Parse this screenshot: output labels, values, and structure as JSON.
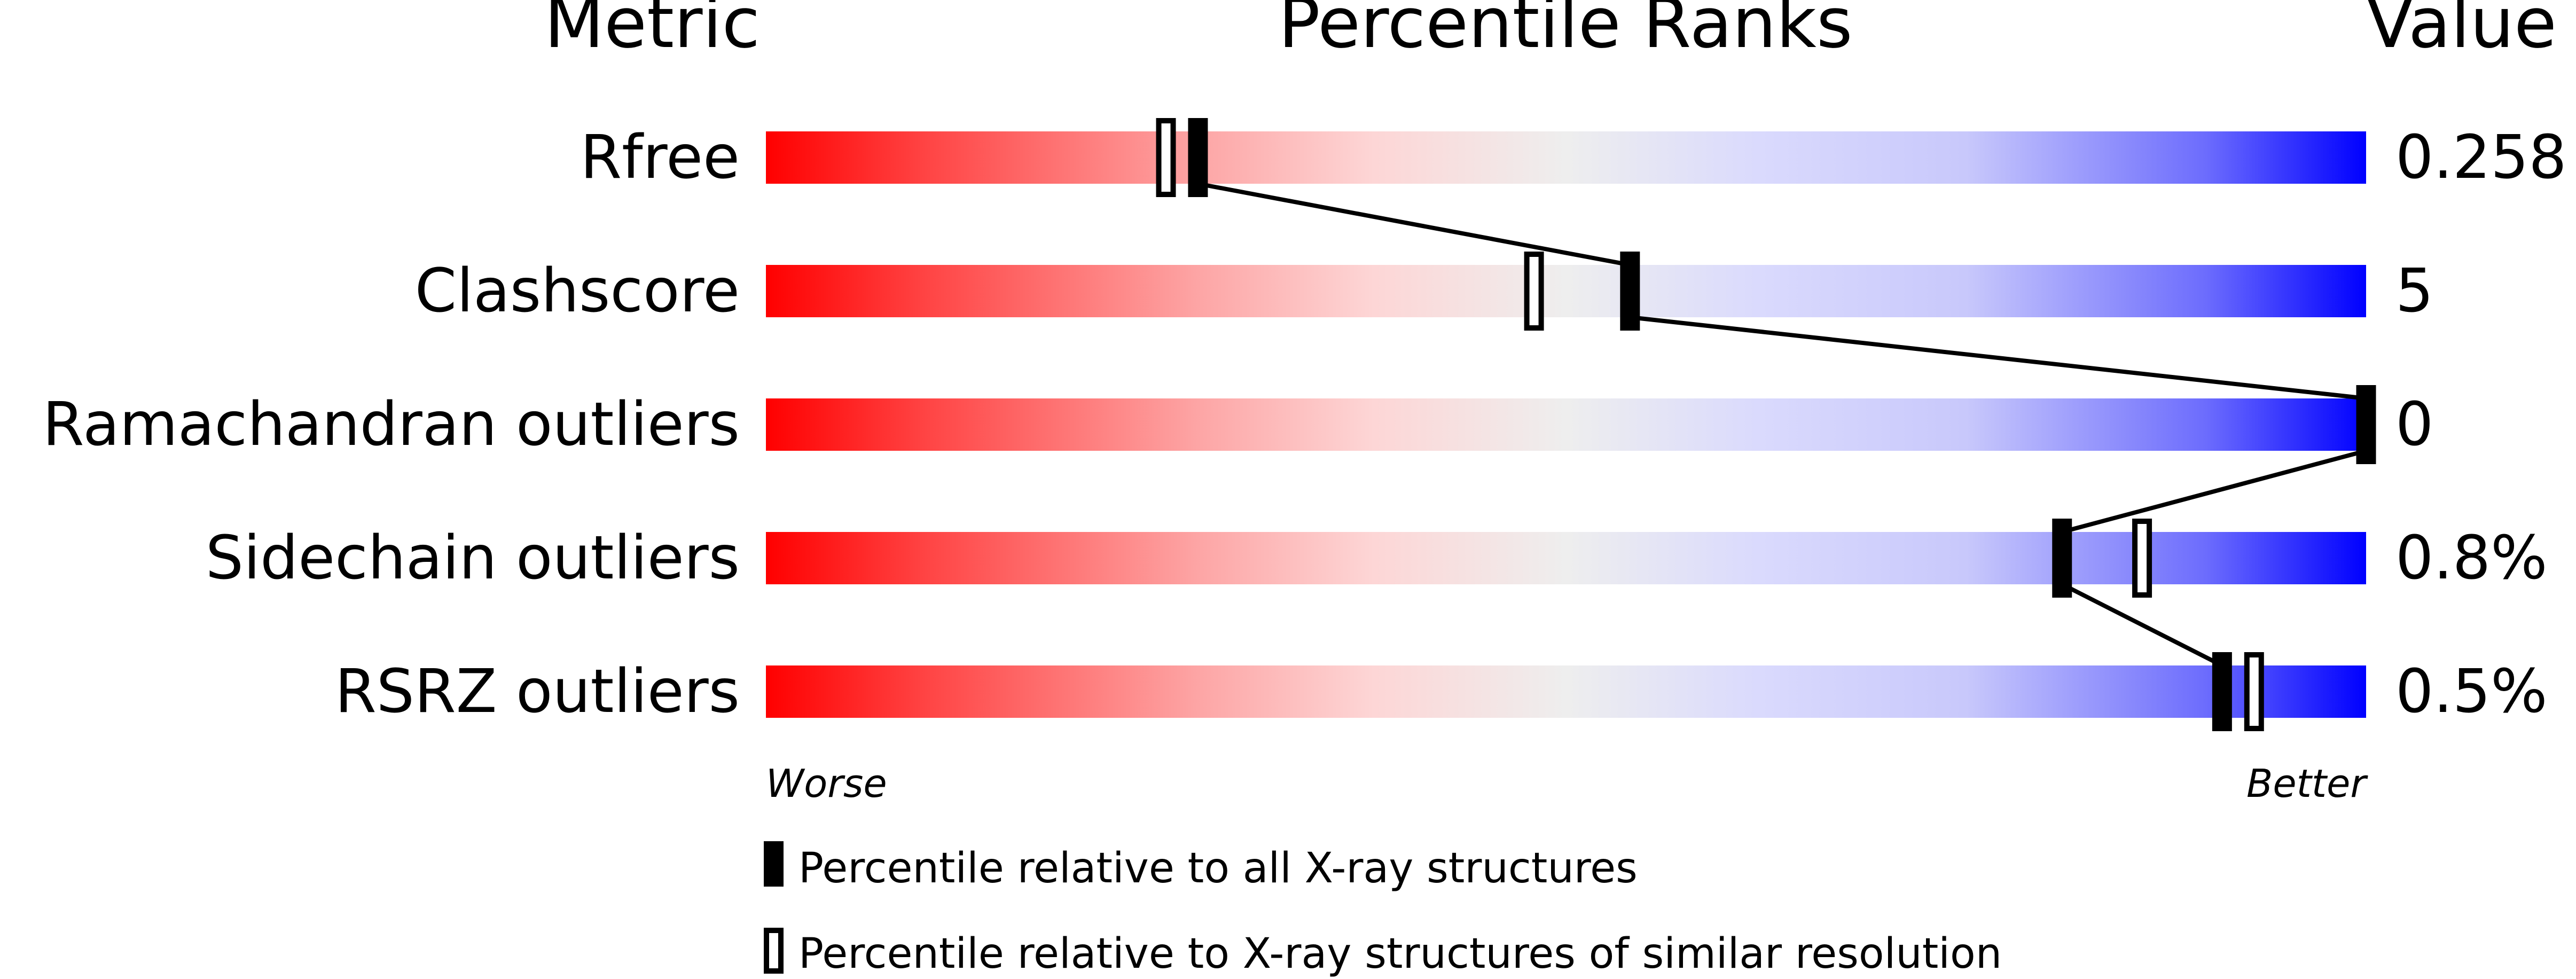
{
  "chart_data": {
    "type": "bar",
    "title": "",
    "headers": {
      "metric": "Metric",
      "ranks": "Percentile Ranks",
      "value": "Value"
    },
    "xlim": [
      0,
      100
    ],
    "metrics": [
      {
        "name": "Rfree",
        "value": "0.258",
        "percentile_all": 27,
        "percentile_similar": 25
      },
      {
        "name": "Clashscore",
        "value": "5",
        "percentile_all": 54,
        "percentile_similar": 48
      },
      {
        "name": "Ramachandran outliers",
        "value": "0",
        "percentile_all": 100,
        "percentile_similar": 100
      },
      {
        "name": "Sidechain outliers",
        "value": "0.8%",
        "percentile_all": 81,
        "percentile_similar": 86
      },
      {
        "name": "RSRZ outliers",
        "value": "0.5%",
        "percentile_all": 91,
        "percentile_similar": 93
      }
    ],
    "axis": {
      "worse": "Worse",
      "better": "Better"
    },
    "legend": {
      "all": "Percentile relative to all X-ray structures",
      "similar": "Percentile relative to X-ray structures of similar resolution"
    },
    "colors": {
      "worse": "#ff0000",
      "middle": "#eeeeee",
      "better": "#0000ff",
      "marker": "#000000"
    }
  }
}
